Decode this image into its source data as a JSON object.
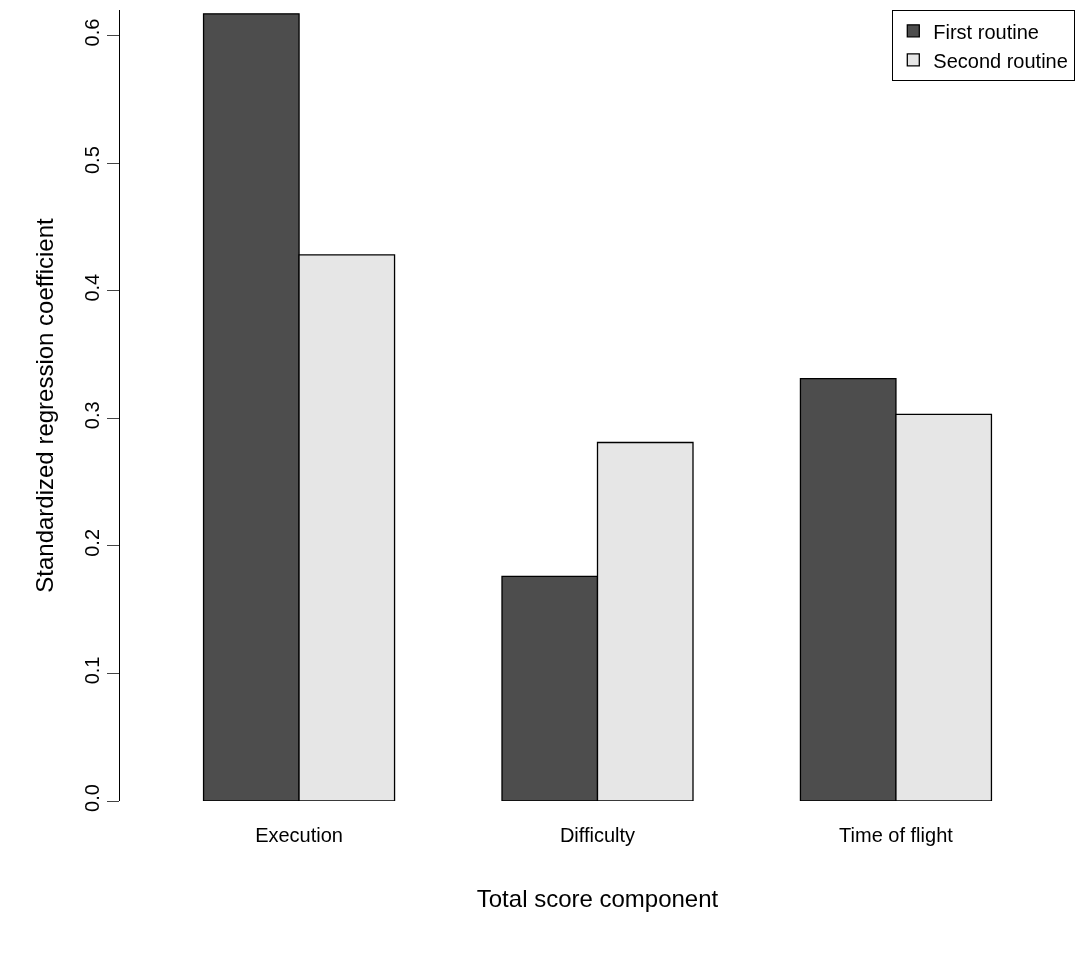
{
  "chart_data": {
    "type": "bar",
    "xlabel": "Total score component",
    "ylabel": "Standardized regression coefficient",
    "categories": [
      "Execution",
      "Difficulty",
      "Time of flight"
    ],
    "series": [
      {
        "name": "First routine",
        "color": "#4d4d4d",
        "values": [
          0.617,
          0.176,
          0.331
        ]
      },
      {
        "name": "Second routine",
        "color": "#e6e6e6",
        "values": [
          0.428,
          0.281,
          0.303
        ]
      }
    ],
    "ylim": [
      0,
      0.62
    ],
    "yticks": [
      {
        "value": 0,
        "label": "0.0"
      },
      0.1,
      0.2,
      0.3,
      0.4,
      0.5,
      0.6
    ],
    "legend": "top right"
  }
}
